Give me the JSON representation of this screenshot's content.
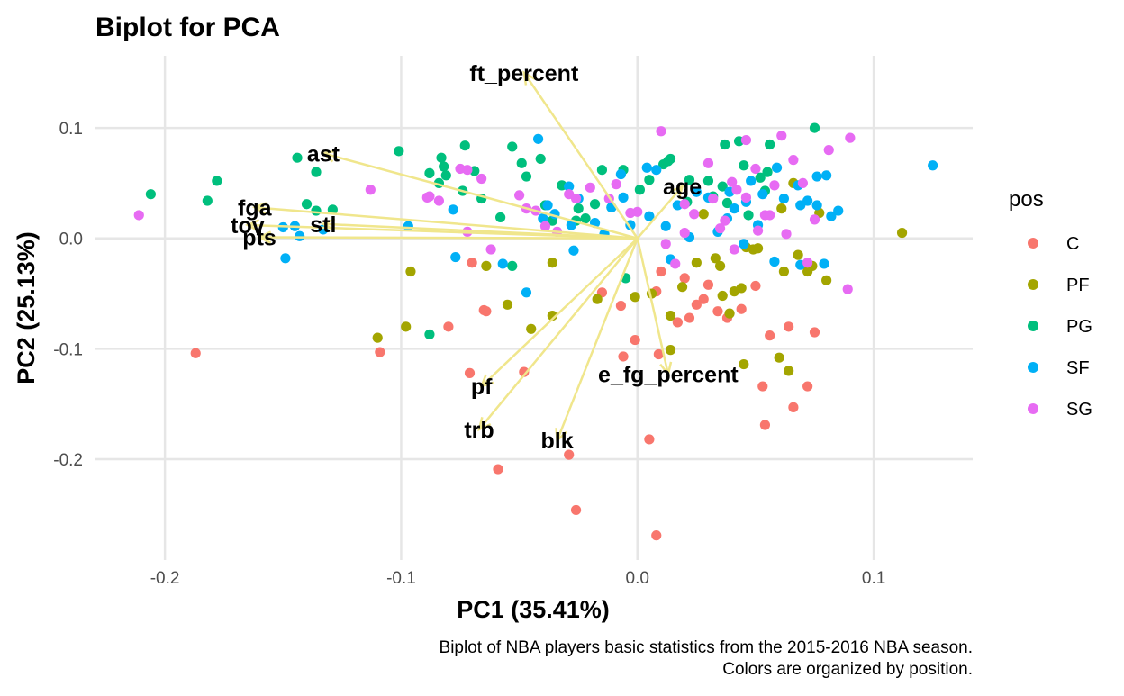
{
  "chart_data": {
    "type": "scatter",
    "title": "Biplot for PCA",
    "xlabel": "PC1 (35.41%)",
    "ylabel": "PC2 (25.13%)",
    "caption": [
      "Biplot of NBA players basic statistics from the 2015-2016 NBA season.",
      "Colors are organized by position."
    ],
    "xlim": [
      -0.2294,
      0.1419
    ],
    "ylim": [
      -0.2913,
      0.1653
    ],
    "x_ticks": [
      -0.2,
      -0.1,
      0.0,
      0.1
    ],
    "x_tick_labels": [
      "-0.2",
      "-0.1",
      "0.0",
      "0.1"
    ],
    "y_ticks": [
      -0.2,
      -0.1,
      0.0,
      0.1
    ],
    "y_tick_labels": [
      "-0.2",
      "-0.1",
      "0.0",
      "0.1"
    ],
    "grid": true,
    "legend": {
      "title": "pos",
      "position": "right"
    },
    "arrow_color": "#f0e68c",
    "series": [
      {
        "name": "C",
        "color": "#F8766D",
        "points": [
          [
            -0.187,
            -0.104
          ],
          [
            -0.109,
            -0.103
          ],
          [
            -0.08,
            -0.08
          ],
          [
            -0.07,
            -0.022
          ],
          [
            -0.065,
            -0.065
          ],
          [
            -0.064,
            -0.066
          ],
          [
            -0.071,
            -0.122
          ],
          [
            -0.059,
            -0.209
          ],
          [
            -0.048,
            -0.121
          ],
          [
            -0.029,
            -0.196
          ],
          [
            -0.026,
            -0.246
          ],
          [
            -0.015,
            -0.049
          ],
          [
            -0.007,
            -0.061
          ],
          [
            -0.006,
            -0.107
          ],
          [
            -0.001,
            -0.092
          ],
          [
            0.008,
            -0.269
          ],
          [
            0.005,
            -0.182
          ],
          [
            0.009,
            -0.105
          ],
          [
            0.017,
            -0.076
          ],
          [
            0.02,
            -0.036
          ],
          [
            0.025,
            -0.06
          ],
          [
            0.022,
            -0.072
          ],
          [
            0.03,
            -0.042
          ],
          [
            0.034,
            -0.066
          ],
          [
            0.038,
            -0.072
          ],
          [
            0.044,
            -0.064
          ],
          [
            0.05,
            -0.043
          ],
          [
            0.053,
            -0.134
          ],
          [
            0.054,
            -0.169
          ],
          [
            0.056,
            -0.088
          ],
          [
            0.064,
            -0.08
          ],
          [
            0.066,
            -0.153
          ],
          [
            0.072,
            -0.134
          ],
          [
            0.075,
            -0.085
          ],
          [
            0.008,
            -0.048
          ],
          [
            0.028,
            -0.055
          ],
          [
            0.01,
            -0.03
          ]
        ]
      },
      {
        "name": "PF",
        "color": "#A3A500",
        "points": [
          [
            -0.11,
            -0.09
          ],
          [
            -0.098,
            -0.08
          ],
          [
            -0.096,
            -0.03
          ],
          [
            -0.064,
            -0.025
          ],
          [
            -0.055,
            -0.06
          ],
          [
            -0.045,
            -0.082
          ],
          [
            -0.036,
            -0.07
          ],
          [
            -0.036,
            -0.022
          ],
          [
            -0.017,
            -0.055
          ],
          [
            -0.001,
            -0.053
          ],
          [
            0.014,
            -0.07
          ],
          [
            0.014,
            -0.101
          ],
          [
            0.025,
            -0.022
          ],
          [
            0.033,
            -0.018
          ],
          [
            0.035,
            -0.025
          ],
          [
            0.036,
            -0.052
          ],
          [
            0.039,
            -0.068
          ],
          [
            0.044,
            -0.045
          ],
          [
            0.045,
            -0.114
          ],
          [
            0.046,
            -0.008
          ],
          [
            0.049,
            -0.01
          ],
          [
            0.051,
            -0.009
          ],
          [
            0.06,
            -0.108
          ],
          [
            0.062,
            -0.03
          ],
          [
            0.064,
            -0.12
          ],
          [
            0.068,
            -0.015
          ],
          [
            0.072,
            -0.03
          ],
          [
            0.074,
            -0.025
          ],
          [
            0.08,
            -0.038
          ],
          [
            0.077,
            0.023
          ],
          [
            0.112,
            0.005
          ],
          [
            0.066,
            0.05
          ],
          [
            0.061,
            0.027
          ],
          [
            0.028,
            0.022
          ],
          [
            0.019,
            -0.044
          ],
          [
            0.006,
            -0.05
          ],
          [
            0.041,
            -0.048
          ]
        ]
      },
      {
        "name": "PG",
        "color": "#00BF7D",
        "points": [
          [
            -0.206,
            0.04
          ],
          [
            -0.182,
            0.034
          ],
          [
            -0.178,
            0.052
          ],
          [
            -0.144,
            0.073
          ],
          [
            -0.14,
            0.031
          ],
          [
            -0.136,
            0.06
          ],
          [
            -0.136,
            0.025
          ],
          [
            -0.129,
            0.026
          ],
          [
            -0.101,
            0.079
          ],
          [
            -0.088,
            0.059
          ],
          [
            -0.084,
            0.05
          ],
          [
            -0.083,
            0.073
          ],
          [
            -0.082,
            0.065
          ],
          [
            -0.081,
            0.057
          ],
          [
            -0.074,
            0.043
          ],
          [
            -0.073,
            0.084
          ],
          [
            -0.069,
            0.061
          ],
          [
            -0.066,
            0.036
          ],
          [
            -0.058,
            0.019
          ],
          [
            -0.053,
            0.083
          ],
          [
            -0.049,
            0.068
          ],
          [
            -0.047,
            0.056
          ],
          [
            -0.041,
            0.072
          ],
          [
            -0.039,
            0.03
          ],
          [
            -0.036,
            0.016
          ],
          [
            -0.032,
            0.048
          ],
          [
            -0.026,
            0.016
          ],
          [
            -0.025,
            0.027
          ],
          [
            -0.022,
            0.018
          ],
          [
            -0.018,
            0.031
          ],
          [
            -0.015,
            0.062
          ],
          [
            -0.011,
            0.028
          ],
          [
            -0.006,
            0.062
          ],
          [
            0.001,
            0.044
          ],
          [
            0.005,
            0.053
          ],
          [
            0.011,
            0.067
          ],
          [
            0.013,
            0.07
          ],
          [
            0.014,
            0.072
          ],
          [
            0.021,
            0.033
          ],
          [
            0.022,
            0.053
          ],
          [
            0.03,
            0.052
          ],
          [
            0.037,
            0.085
          ],
          [
            0.043,
            0.088
          ],
          [
            0.045,
            0.066
          ],
          [
            0.052,
            0.055
          ],
          [
            0.054,
            0.043
          ],
          [
            0.055,
            0.06
          ],
          [
            0.056,
            0.085
          ],
          [
            0.075,
            0.1
          ],
          [
            0.047,
            0.021
          ],
          [
            -0.088,
            -0.087
          ],
          [
            -0.053,
            -0.025
          ],
          [
            -0.005,
            -0.036
          ],
          [
            0.032,
            0.038
          ],
          [
            0.036,
            0.047
          ],
          [
            0.038,
            0.032
          ]
        ]
      },
      {
        "name": "SF",
        "color": "#00B0F6",
        "points": [
          [
            -0.15,
            0.01
          ],
          [
            -0.149,
            -0.018
          ],
          [
            -0.145,
            0.011
          ],
          [
            -0.143,
            0.002
          ],
          [
            -0.133,
            0.008
          ],
          [
            -0.097,
            0.011
          ],
          [
            -0.078,
            0.026
          ],
          [
            -0.077,
            -0.017
          ],
          [
            -0.057,
            -0.023
          ],
          [
            -0.047,
            -0.049
          ],
          [
            -0.042,
            0.09
          ],
          [
            -0.04,
            0.018
          ],
          [
            -0.038,
            0.03
          ],
          [
            -0.035,
            0.022
          ],
          [
            -0.029,
            0.047
          ],
          [
            -0.028,
            0.012
          ],
          [
            -0.027,
            -0.011
          ],
          [
            -0.025,
            0.036
          ],
          [
            -0.018,
            0.014
          ],
          [
            -0.014,
            0.004
          ],
          [
            -0.011,
            0.028
          ],
          [
            -0.007,
            0.058
          ],
          [
            -0.006,
            0.037
          ],
          [
            -0.003,
            0.012
          ],
          [
            0.004,
            0.064
          ],
          [
            0.008,
            0.062
          ],
          [
            0.012,
            0.011
          ],
          [
            0.014,
            -0.019
          ],
          [
            0.017,
            0.03
          ],
          [
            0.022,
            0.001
          ],
          [
            0.025,
            0.042
          ],
          [
            0.03,
            0.037
          ],
          [
            0.034,
            0.006
          ],
          [
            0.039,
            0.042
          ],
          [
            0.041,
            0.027
          ],
          [
            0.045,
            -0.005
          ],
          [
            0.048,
            0.052
          ],
          [
            0.051,
            0.012
          ],
          [
            0.059,
            0.064
          ],
          [
            0.062,
            0.036
          ],
          [
            0.068,
            0.048
          ],
          [
            0.069,
            0.03
          ],
          [
            0.072,
            0.034
          ],
          [
            0.076,
            0.03
          ],
          [
            0.076,
            0.056
          ],
          [
            0.08,
            0.057
          ],
          [
            0.082,
            0.02
          ],
          [
            0.085,
            0.025
          ],
          [
            0.125,
            0.066
          ],
          [
            0.069,
            -0.024
          ],
          [
            0.079,
            -0.023
          ],
          [
            0.058,
            -0.021
          ],
          [
            0.005,
            0.02
          ],
          [
            0.038,
            0.018
          ],
          [
            0.046,
            0.033
          ],
          [
            0.053,
            0.04
          ]
        ]
      },
      {
        "name": "SG",
        "color": "#E76BF3",
        "points": [
          [
            -0.211,
            0.021
          ],
          [
            -0.113,
            0.044
          ],
          [
            -0.089,
            0.037
          ],
          [
            -0.088,
            0.038
          ],
          [
            -0.084,
            0.034
          ],
          [
            -0.075,
            0.063
          ],
          [
            -0.072,
            0.062
          ],
          [
            -0.066,
            0.054
          ],
          [
            -0.062,
            -0.01
          ],
          [
            -0.05,
            0.039
          ],
          [
            -0.047,
            0.027
          ],
          [
            -0.043,
            0.025
          ],
          [
            -0.039,
            0.011
          ],
          [
            -0.034,
            0.006
          ],
          [
            -0.026,
            0.036
          ],
          [
            -0.02,
            0.046
          ],
          [
            -0.012,
            0.036
          ],
          [
            -0.009,
            0.049
          ],
          [
            -0.003,
            0.023
          ],
          [
            0.0,
            0.024
          ],
          [
            0.01,
            0.097
          ],
          [
            0.012,
            -0.005
          ],
          [
            0.02,
            0.031
          ],
          [
            0.024,
            0.022
          ],
          [
            0.032,
            0.036
          ],
          [
            0.035,
            0.009
          ],
          [
            0.037,
            0.016
          ],
          [
            0.04,
            0.051
          ],
          [
            0.041,
            -0.01
          ],
          [
            0.046,
            0.037
          ],
          [
            0.046,
            0.089
          ],
          [
            0.051,
            0.007
          ],
          [
            0.054,
            0.021
          ],
          [
            0.056,
            0.021
          ],
          [
            0.058,
            0.048
          ],
          [
            0.061,
            0.093
          ],
          [
            0.063,
            0.004
          ],
          [
            0.066,
            0.071
          ],
          [
            0.07,
            0.05
          ],
          [
            0.075,
            0.017
          ],
          [
            0.081,
            0.08
          ],
          [
            0.09,
            0.091
          ],
          [
            0.089,
            -0.046
          ],
          [
            0.072,
            -0.022
          ],
          [
            0.042,
            0.044
          ],
          [
            0.05,
            0.063
          ],
          [
            0.03,
            0.068
          ],
          [
            0.016,
            -0.023
          ],
          [
            0.02,
            0.005
          ],
          [
            -0.072,
            0.006
          ],
          [
            -0.029,
            0.04
          ]
        ]
      }
    ],
    "loadings": [
      {
        "label": "ft_percent",
        "x": -0.048,
        "y": 0.15
      },
      {
        "label": "ast",
        "x": -0.133,
        "y": 0.077
      },
      {
        "label": "fga",
        "x": -0.162,
        "y": 0.028
      },
      {
        "label": "tov",
        "x": -0.165,
        "y": 0.012
      },
      {
        "label": "pts",
        "x": -0.16,
        "y": 0.001
      },
      {
        "label": "stl",
        "x": -0.133,
        "y": 0.013
      },
      {
        "label": "age",
        "x": 0.019,
        "y": 0.047
      },
      {
        "label": "e_fg_percent",
        "x": 0.013,
        "y": -0.123
      },
      {
        "label": "pf",
        "x": -0.066,
        "y": -0.134
      },
      {
        "label": "trb",
        "x": -0.067,
        "y": -0.173
      },
      {
        "label": "blk",
        "x": -0.034,
        "y": -0.183
      }
    ]
  }
}
